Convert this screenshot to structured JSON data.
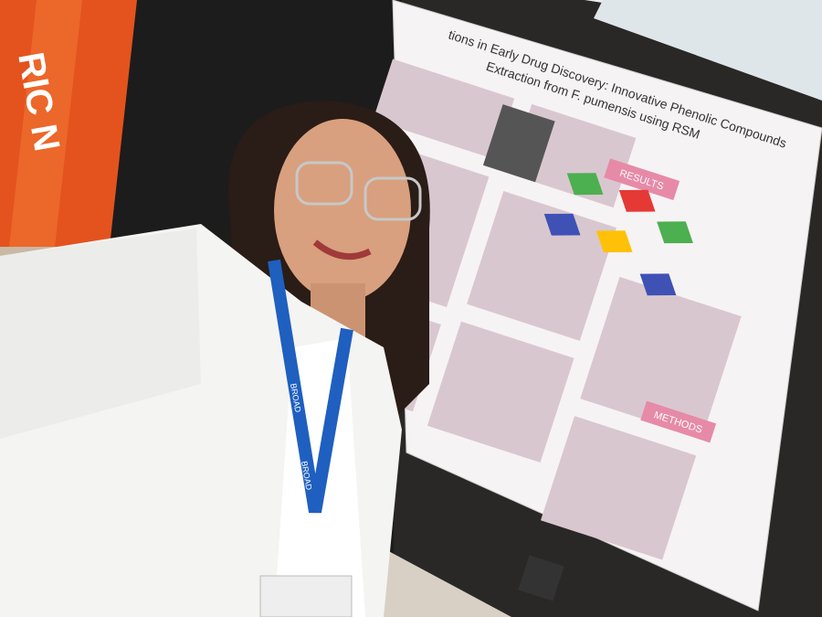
{
  "sign": {
    "text": "RIC N"
  },
  "poster": {
    "title_line1": "tions in Early Drug Discovery: Innovative Phenolic Compounds",
    "title_line2": "Extraction from F. pumensis using RSM",
    "results": "RESULTS",
    "methods": "METHODS"
  },
  "lanyard": {
    "text": "BROAD"
  }
}
